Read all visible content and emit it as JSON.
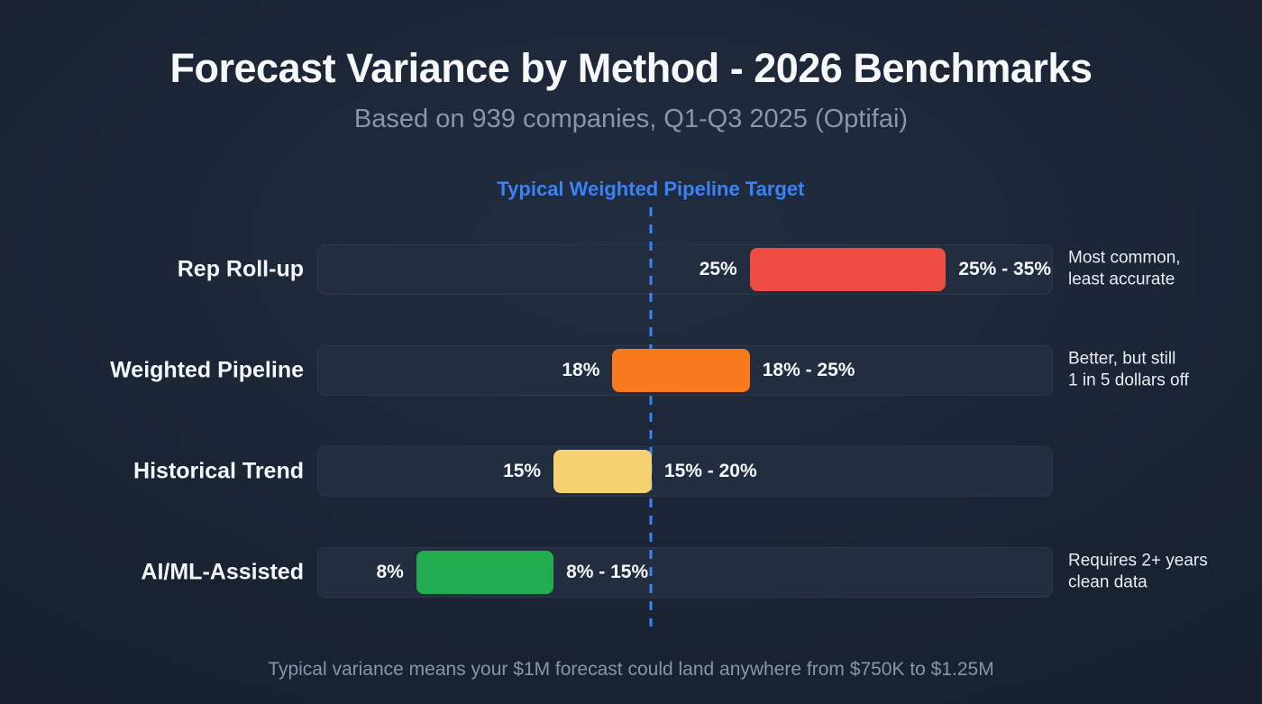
{
  "chart_data": {
    "type": "bar",
    "variant": "horizontal-range-bars",
    "title": "Forecast Variance by Method - 2026 Benchmarks",
    "subtitle": "Based on 939 companies, Q1-Q3 2025 (Optifai)",
    "axis": {
      "min": 3,
      "max": 40.5,
      "unit": "%"
    },
    "target_line": {
      "label": "Typical Weighted Pipeline Target",
      "value": 20,
      "color": "#3b82f6"
    },
    "rows": [
      {
        "label": "Rep Roll-up",
        "min": 25,
        "max": 35,
        "min_label": "25%",
        "range_label": "25% - 35%",
        "color": "#ef4b45",
        "note_lines": [
          "Most common,",
          "least accurate"
        ]
      },
      {
        "label": "Weighted Pipeline",
        "min": 18,
        "max": 25,
        "min_label": "18%",
        "range_label": "18% - 25%",
        "color": "#f9791d",
        "note_lines": [
          "Better, but still",
          "1 in 5 dollars off"
        ]
      },
      {
        "label": "Historical Trend",
        "min": 15,
        "max": 20,
        "min_label": "15%",
        "range_label": "15% - 20%",
        "color": "#f5d170",
        "note_lines": []
      },
      {
        "label": "AI/ML-Assisted",
        "min": 8,
        "max": 15,
        "min_label": "8%",
        "range_label": "8% - 15%",
        "color": "#21ad4f",
        "note_lines": [
          "Requires 2+ years",
          "clean data"
        ]
      }
    ],
    "footnote": "Typical variance means your $1M forecast could land anywhere from $750K to $1.25M"
  }
}
